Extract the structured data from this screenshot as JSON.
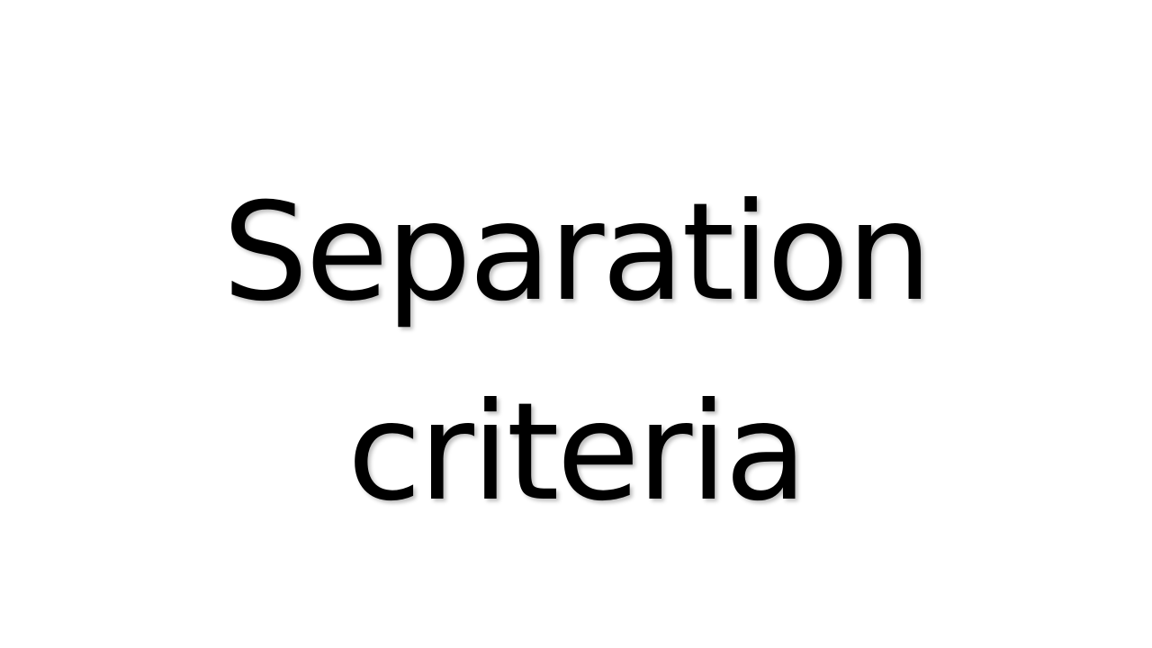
{
  "slide": {
    "title_lines": [
      "Separation",
      "criteria"
    ],
    "text_color": "#000000",
    "background_color": "#ffffff"
  }
}
